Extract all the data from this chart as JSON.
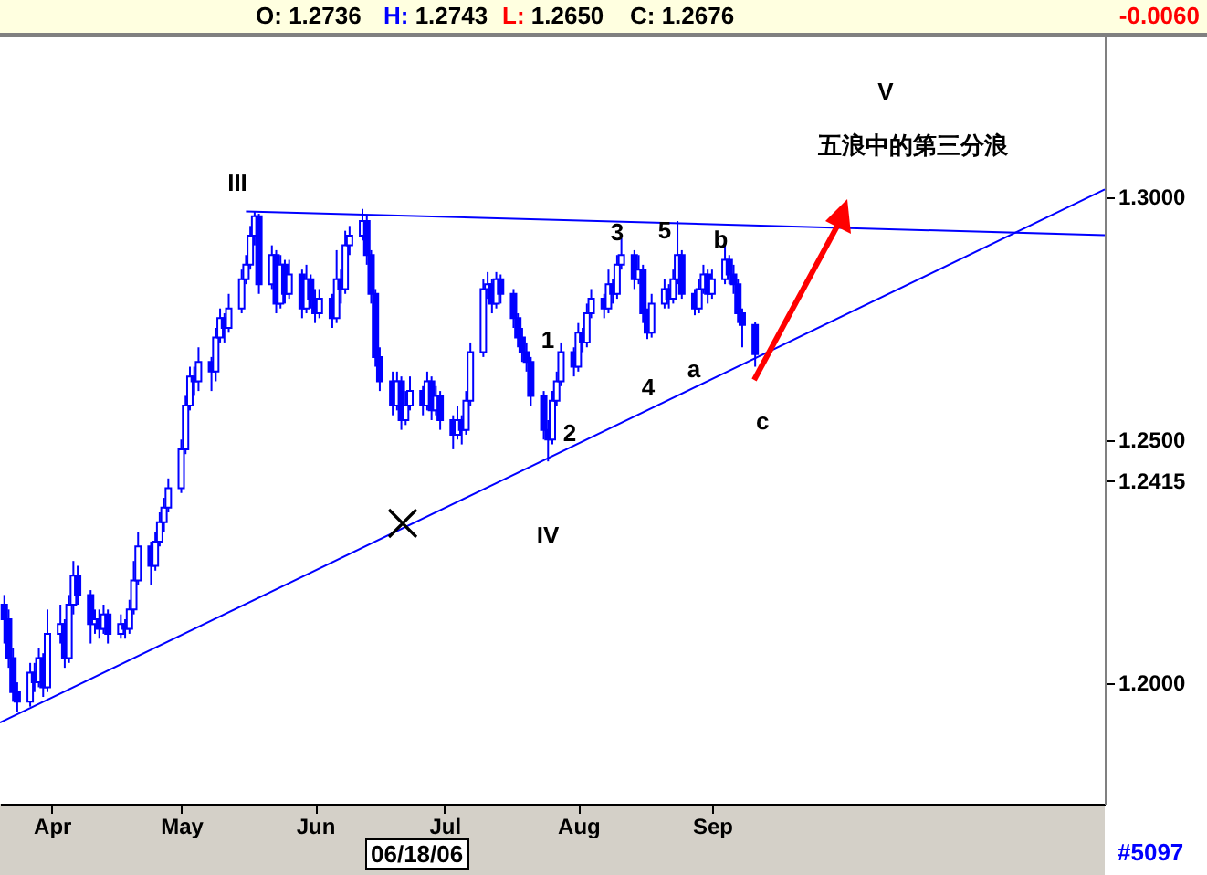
{
  "chart_data": {
    "type": "candlestick",
    "xlim": [
      "--03-20",
      "--12-01"
    ],
    "ylim": [
      1.175,
      1.333
    ],
    "xticks": [
      {
        "value": "--04-01",
        "label": "Apr"
      },
      {
        "value": "--05-01",
        "label": "May"
      },
      {
        "value": "--06-01",
        "label": "Jun"
      },
      {
        "value": "--07-01",
        "label": "Jul"
      },
      {
        "value": "--08-01",
        "label": "Aug"
      },
      {
        "value": "--09-01",
        "label": "Sep"
      }
    ],
    "yticks": [
      {
        "value": 1.2,
        "label": "1.2000"
      },
      {
        "value": 1.2415,
        "label": "1.2415"
      },
      {
        "value": 1.25,
        "label": "1.2500"
      },
      {
        "value": 1.3,
        "label": "1.3000"
      }
    ],
    "series": [
      {
        "color": "#0000ff",
        "x": [
          "--03-21",
          "--03-22",
          "--03-23",
          "--03-24",
          "--03-27",
          "--03-28",
          "--03-29",
          "--03-30",
          "--03-31",
          "--04-03",
          "--04-04",
          "--04-05",
          "--04-06",
          "--04-07",
          "--04-10",
          "--04-11",
          "--04-12",
          "--04-13",
          "--04-14",
          "--04-17",
          "--04-18",
          "--04-19",
          "--04-20",
          "--04-21",
          "--04-24",
          "--04-25",
          "--04-26",
          "--04-27",
          "--04-28",
          "--05-01",
          "--05-02",
          "--05-03",
          "--05-04",
          "--05-05",
          "--05-08",
          "--05-09",
          "--05-10",
          "--05-11",
          "--05-12",
          "--05-15",
          "--05-16",
          "--05-17",
          "--05-18",
          "--05-19",
          "--05-22",
          "--05-23",
          "--05-24",
          "--05-25",
          "--05-26",
          "--05-29",
          "--05-30",
          "--05-31",
          "--06-01",
          "--06-02",
          "--06-05",
          "--06-06",
          "--06-07",
          "--06-08",
          "--06-09",
          "--06-12",
          "--06-13",
          "--06-14",
          "--06-15",
          "--06-16",
          "--06-19",
          "--06-20",
          "--06-21",
          "--06-22",
          "--06-23",
          "--06-26",
          "--06-27",
          "--06-28",
          "--06-29",
          "--06-30",
          "--07-03",
          "--07-04",
          "--07-05",
          "--07-06",
          "--07-07",
          "--07-10",
          "--07-11",
          "--07-12",
          "--07-13",
          "--07-14",
          "--07-17",
          "--07-18",
          "--07-19",
          "--07-20",
          "--07-21",
          "--07-24",
          "--07-25",
          "--07-26",
          "--07-27",
          "--07-28",
          "--07-31",
          "--08-01",
          "--08-02",
          "--08-03",
          "--08-04",
          "--08-07",
          "--08-08",
          "--08-09",
          "--08-10",
          "--08-11",
          "--08-14",
          "--08-15",
          "--08-16",
          "--08-17",
          "--08-18",
          "--08-21",
          "--08-22",
          "--08-23",
          "--08-24",
          "--08-25",
          "--08-28",
          "--08-29",
          "--08-30",
          "--08-31",
          "--09-01",
          "--09-04",
          "--09-05",
          "--09-06",
          "--09-07",
          "--09-08",
          "--09-11"
        ],
        "ohlc": [
          [
            1.216,
            1.218,
            1.208,
            1.213
          ],
          [
            1.213,
            1.215,
            1.203,
            1.205
          ],
          [
            1.205,
            1.207,
            1.196,
            1.198
          ],
          [
            1.198,
            1.2,
            1.194,
            1.196
          ],
          [
            1.196,
            1.204,
            1.195,
            1.202
          ],
          [
            1.202,
            1.204,
            1.198,
            1.2
          ],
          [
            1.2,
            1.207,
            1.199,
            1.205
          ],
          [
            1.205,
            1.206,
            1.197,
            1.199
          ],
          [
            1.199,
            1.215,
            1.198,
            1.21
          ],
          [
            1.21,
            1.216,
            1.208,
            1.212
          ],
          [
            1.212,
            1.213,
            1.203,
            1.205
          ],
          [
            1.205,
            1.218,
            1.204,
            1.216
          ],
          [
            1.216,
            1.225,
            1.214,
            1.222
          ],
          [
            1.222,
            1.224,
            1.216,
            1.218
          ],
          [
            1.218,
            1.219,
            1.208,
            1.212
          ],
          [
            1.212,
            1.215,
            1.21,
            1.213
          ],
          [
            1.213,
            1.215,
            1.209,
            1.211
          ],
          [
            1.211,
            1.216,
            1.21,
            1.214
          ],
          [
            1.214,
            1.215,
            1.208,
            1.21
          ],
          [
            1.21,
            1.214,
            1.209,
            1.212
          ],
          [
            1.212,
            1.213,
            1.209,
            1.211
          ],
          [
            1.211,
            1.217,
            1.21,
            1.215
          ],
          [
            1.215,
            1.225,
            1.214,
            1.221
          ],
          [
            1.221,
            1.231,
            1.22,
            1.228
          ],
          [
            1.228,
            1.229,
            1.22,
            1.224
          ],
          [
            1.224,
            1.231,
            1.223,
            1.229
          ],
          [
            1.229,
            1.235,
            1.228,
            1.233
          ],
          [
            1.233,
            1.238,
            1.231,
            1.236
          ],
          [
            1.236,
            1.242,
            1.235,
            1.24
          ],
          [
            1.24,
            1.25,
            1.239,
            1.248
          ],
          [
            1.248,
            1.259,
            1.247,
            1.257
          ],
          [
            1.257,
            1.265,
            1.256,
            1.263
          ],
          [
            1.263,
            1.265,
            1.259,
            1.262
          ],
          [
            1.262,
            1.269,
            1.26,
            1.266
          ],
          [
            1.266,
            1.267,
            1.26,
            1.264
          ],
          [
            1.264,
            1.273,
            1.262,
            1.271
          ],
          [
            1.271,
            1.277,
            1.27,
            1.275
          ],
          [
            1.275,
            1.276,
            1.27,
            1.273
          ],
          [
            1.273,
            1.28,
            1.272,
            1.277
          ],
          [
            1.277,
            1.285,
            1.276,
            1.283
          ],
          [
            1.283,
            1.288,
            1.282,
            1.286
          ],
          [
            1.286,
            1.294,
            1.285,
            1.292
          ],
          [
            1.292,
            1.297,
            1.29,
            1.296
          ],
          [
            1.296,
            1.2965,
            1.28,
            1.282
          ],
          [
            1.282,
            1.29,
            1.281,
            1.288
          ],
          [
            1.288,
            1.289,
            1.276,
            1.278
          ],
          [
            1.278,
            1.288,
            1.277,
            1.286
          ],
          [
            1.286,
            1.287,
            1.278,
            1.28
          ],
          [
            1.28,
            1.287,
            1.279,
            1.284
          ],
          [
            1.284,
            1.285,
            1.275,
            1.277
          ],
          [
            1.277,
            1.286,
            1.276,
            1.283
          ],
          [
            1.283,
            1.284,
            1.277,
            1.279
          ],
          [
            1.279,
            1.281,
            1.274,
            1.276
          ],
          [
            1.276,
            1.281,
            1.275,
            1.279
          ],
          [
            1.279,
            1.28,
            1.273,
            1.275
          ],
          [
            1.275,
            1.289,
            1.274,
            1.283
          ],
          [
            1.283,
            1.285,
            1.278,
            1.281
          ],
          [
            1.281,
            1.293,
            1.28,
            1.29
          ],
          [
            1.29,
            1.294,
            1.288,
            1.292
          ],
          [
            1.292,
            1.2975,
            1.291,
            1.295
          ],
          [
            1.295,
            1.296,
            1.286,
            1.288
          ],
          [
            1.288,
            1.289,
            1.278,
            1.28
          ],
          [
            1.28,
            1.281,
            1.265,
            1.267
          ],
          [
            1.267,
            1.269,
            1.26,
            1.262
          ],
          [
            1.262,
            1.264,
            1.255,
            1.257
          ],
          [
            1.257,
            1.264,
            1.256,
            1.262
          ],
          [
            1.262,
            1.263,
            1.252,
            1.254
          ],
          [
            1.254,
            1.26,
            1.253,
            1.257
          ],
          [
            1.257,
            1.263,
            1.256,
            1.26
          ],
          [
            1.26,
            1.261,
            1.255,
            1.257
          ],
          [
            1.257,
            1.264,
            1.256,
            1.262
          ],
          [
            1.262,
            1.263,
            1.254,
            1.256
          ],
          [
            1.256,
            1.261,
            1.255,
            1.259
          ],
          [
            1.259,
            1.26,
            1.252,
            1.254
          ],
          [
            1.254,
            1.255,
            1.248,
            1.251
          ],
          [
            1.251,
            1.257,
            1.25,
            1.254
          ],
          [
            1.254,
            1.255,
            1.249,
            1.252
          ],
          [
            1.252,
            1.26,
            1.251,
            1.258
          ],
          [
            1.258,
            1.27,
            1.257,
            1.268
          ],
          [
            1.268,
            1.283,
            1.267,
            1.281
          ],
          [
            1.281,
            1.2845,
            1.279,
            1.282
          ],
          [
            1.282,
            1.283,
            1.276,
            1.278
          ],
          [
            1.278,
            1.2845,
            1.277,
            1.283
          ],
          [
            1.283,
            1.284,
            1.278,
            1.28
          ],
          [
            1.28,
            1.281,
            1.273,
            1.275
          ],
          [
            1.275,
            1.276,
            1.269,
            1.271
          ],
          [
            1.271,
            1.273,
            1.266,
            1.268
          ],
          [
            1.268,
            1.27,
            1.264,
            1.266
          ],
          [
            1.266,
            1.267,
            1.257,
            1.259
          ],
          [
            1.259,
            1.26,
            1.25,
            1.252
          ],
          [
            1.252,
            1.254,
            1.2455,
            1.25
          ],
          [
            1.25,
            1.26,
            1.249,
            1.258
          ],
          [
            1.258,
            1.264,
            1.257,
            1.262
          ],
          [
            1.262,
            1.27,
            1.261,
            1.268
          ],
          [
            1.268,
            1.269,
            1.263,
            1.265
          ],
          [
            1.265,
            1.274,
            1.264,
            1.272
          ],
          [
            1.272,
            1.273,
            1.268,
            1.27
          ],
          [
            1.27,
            1.278,
            1.269,
            1.276
          ],
          [
            1.276,
            1.281,
            1.275,
            1.279
          ],
          [
            1.279,
            1.28,
            1.275,
            1.277
          ],
          [
            1.277,
            1.285,
            1.276,
            1.282
          ],
          [
            1.282,
            1.283,
            1.278,
            1.28
          ],
          [
            1.28,
            1.288,
            1.279,
            1.286
          ],
          [
            1.286,
            1.2915,
            1.285,
            1.288
          ],
          [
            1.288,
            1.289,
            1.281,
            1.283
          ],
          [
            1.283,
            1.288,
            1.282,
            1.285
          ],
          [
            1.285,
            1.286,
            1.274,
            1.276
          ],
          [
            1.276,
            1.277,
            1.2707,
            1.272
          ],
          [
            1.272,
            1.28,
            1.271,
            1.278
          ],
          [
            1.278,
            1.283,
            1.277,
            1.281
          ],
          [
            1.281,
            1.282,
            1.277,
            1.279
          ],
          [
            1.279,
            1.285,
            1.278,
            1.283
          ],
          [
            1.283,
            1.295,
            1.282,
            1.288
          ],
          [
            1.288,
            1.289,
            1.279,
            1.28
          ],
          [
            1.28,
            1.281,
            1.2756,
            1.277
          ],
          [
            1.277,
            1.283,
            1.276,
            1.281
          ],
          [
            1.281,
            1.286,
            1.28,
            1.284
          ],
          [
            1.284,
            1.285,
            1.278,
            1.28
          ],
          [
            1.28,
            1.285,
            1.279,
            1.283
          ],
          [
            1.283,
            1.291,
            1.282,
            1.287
          ],
          [
            1.287,
            1.288,
            1.282,
            1.284
          ],
          [
            1.284,
            1.286,
            1.28,
            1.282
          ],
          [
            1.282,
            1.283,
            1.274,
            1.276
          ],
          [
            1.276,
            1.277,
            1.269,
            1.2736
          ],
          [
            1.2736,
            1.2743,
            1.265,
            1.2676
          ]
        ]
      },
      {
        "type": "line",
        "color": "#0000ff",
        "x": [
          "--05-16",
          "--12-01"
        ],
        "values": [
          1.297,
          1.2921
        ]
      },
      {
        "type": "line",
        "color": "#0000ff",
        "x": [
          "--03-20",
          "--12-01"
        ],
        "values": [
          1.1917,
          1.3015
        ]
      }
    ],
    "annotations": [
      "O: 1.2736",
      "H: 1.2743",
      "L: 1.2650",
      "C: 1.2676",
      "-0.0060",
      "06/18/06",
      "#5097",
      "III",
      "IV",
      "V",
      "五浪中的第三分浪",
      "1",
      "2",
      "4",
      "5",
      "a",
      {
        "text": "c",
        "x": "--09-11",
        "y": 1.265
      },
      {
        "text": "3",
        "x": "--08-10",
        "y": 1.2925
      },
      {
        "text": "b",
        "x": "--09-03",
        "y": 1.291
      }
    ]
  }
}
